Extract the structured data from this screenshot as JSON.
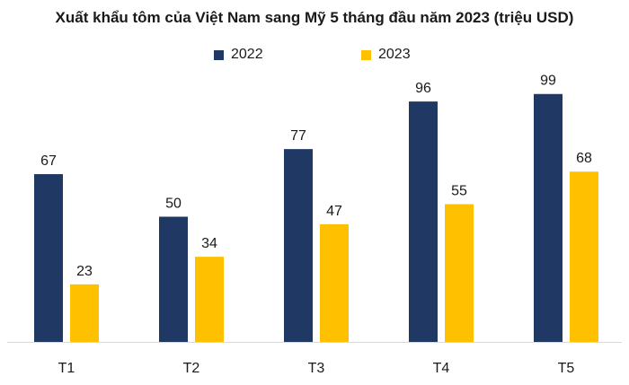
{
  "chart_data": {
    "type": "bar",
    "title": "Xuất khẩu tôm của Việt Nam sang Mỹ 5 tháng đầu năm 2023 (triệu USD)",
    "xlabel": "",
    "ylabel": "",
    "categories": [
      "T1",
      "T2",
      "T3",
      "T4",
      "T5"
    ],
    "series": [
      {
        "name": "2022",
        "values": [
          67,
          50,
          77,
          96,
          99
        ],
        "color": "#1f3864"
      },
      {
        "name": "2023",
        "values": [
          23,
          34,
          47,
          55,
          68
        ],
        "color": "#ffc000"
      }
    ],
    "ylim": [
      0,
      105
    ],
    "grid": false,
    "legend": "top-center",
    "data_labels": true
  }
}
